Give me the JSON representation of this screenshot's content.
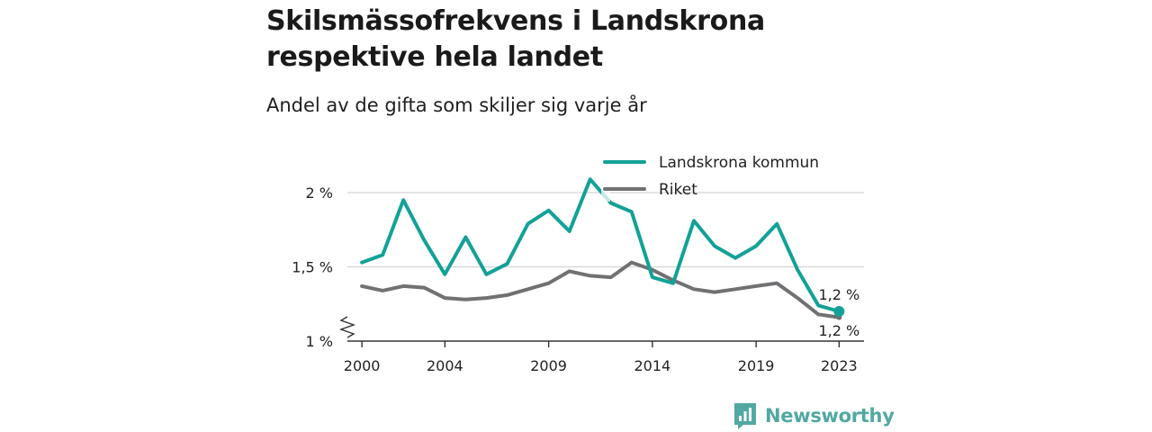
{
  "title": "Skilsmässofrekvens i Landskrona respektive hela landet",
  "subtitle": "Andel av de gifta som skiljer sig varje år",
  "brand": {
    "name": "Newsworthy",
    "color": "#52a8a2",
    "icon": "bar-chart-logo-icon"
  },
  "chart_data": {
    "type": "line",
    "title": "Skilsmässofrekvens i Landskrona respektive hela landet",
    "subtitle": "Andel av de gifta som skiljer sig varje år",
    "x": [
      2000,
      2001,
      2002,
      2003,
      2004,
      2005,
      2006,
      2007,
      2008,
      2009,
      2010,
      2011,
      2012,
      2013,
      2014,
      2015,
      2016,
      2017,
      2018,
      2019,
      2020,
      2021,
      2022,
      2023
    ],
    "x_tick_labels": [
      "2000",
      "2004",
      "2009",
      "2014",
      "2019",
      "2023"
    ],
    "x_tick_values": [
      2000,
      2004,
      2009,
      2014,
      2019,
      2023
    ],
    "y_ticks": [
      {
        "value": 1.0,
        "label": "1 %"
      },
      {
        "value": 1.5,
        "label": "1,5 %"
      },
      {
        "value": 2.0,
        "label": "2 %"
      }
    ],
    "ylim": [
      1.0,
      2.0
    ],
    "xlim": [
      1999.3,
      2024.2
    ],
    "y_axis_break": true,
    "grid": true,
    "legend_position": "top-right",
    "series": [
      {
        "name": "Landskrona kommun",
        "color": "#13a197",
        "values": [
          1.53,
          1.58,
          1.95,
          1.68,
          1.45,
          1.7,
          1.45,
          1.52,
          1.79,
          1.88,
          1.74,
          2.09,
          1.93,
          1.87,
          1.43,
          1.39,
          1.81,
          1.64,
          1.56,
          1.64,
          1.79,
          1.48,
          1.24,
          1.2
        ],
        "end_label": "1,2 %"
      },
      {
        "name": "Riket",
        "color": "#717073",
        "values": [
          1.37,
          1.34,
          1.37,
          1.36,
          1.29,
          1.28,
          1.29,
          1.31,
          1.35,
          1.39,
          1.47,
          1.44,
          1.43,
          1.53,
          1.48,
          1.41,
          1.35,
          1.33,
          1.35,
          1.37,
          1.39,
          1.29,
          1.18,
          1.16
        ],
        "end_label": "1,2 %"
      }
    ]
  }
}
